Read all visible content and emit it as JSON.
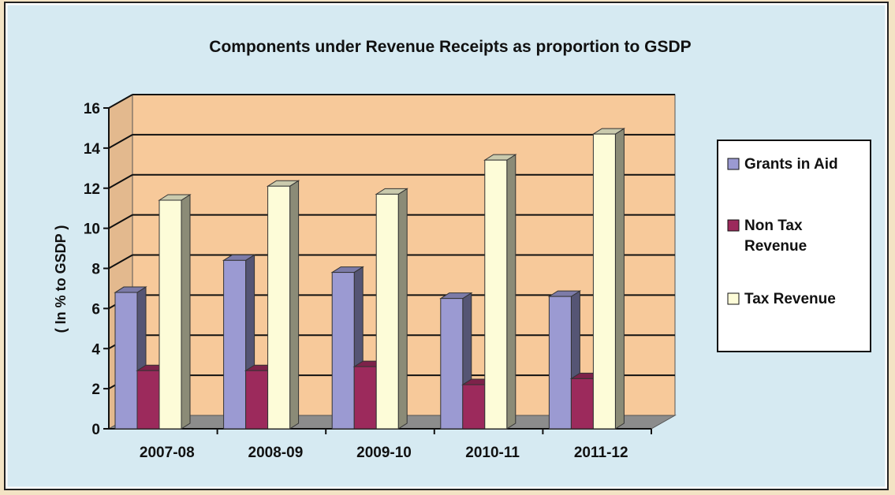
{
  "chart_data": {
    "type": "bar",
    "title": "Components under Revenue Receipts as proportion to GSDP",
    "ylabel": "( In % to GSDP )",
    "xlabel": "",
    "categories": [
      "2007-08",
      "2008-09",
      "2009-10",
      "2010-11",
      "2011-12"
    ],
    "series": [
      {
        "name": "Grants in Aid",
        "values": [
          6.8,
          8.4,
          7.8,
          6.5,
          6.6
        ]
      },
      {
        "name": "Non Tax Revenue",
        "values": [
          2.9,
          2.9,
          3.1,
          2.2,
          2.5
        ]
      },
      {
        "name": "Tax Revenue",
        "values": [
          11.4,
          12.1,
          11.7,
          13.4,
          14.7
        ]
      }
    ],
    "ylim": [
      0,
      16
    ],
    "yticks": [
      0,
      2,
      4,
      6,
      8,
      10,
      12,
      14,
      16
    ],
    "grid": true,
    "legend_position": "right",
    "colors": {
      "outer_background": "#d6eaf2",
      "plot_wall": "#f7c99a",
      "floor": "#8c8c8c",
      "series": [
        "#9b9ad2",
        "#9c2a5c",
        "#fdfcd8"
      ]
    }
  }
}
